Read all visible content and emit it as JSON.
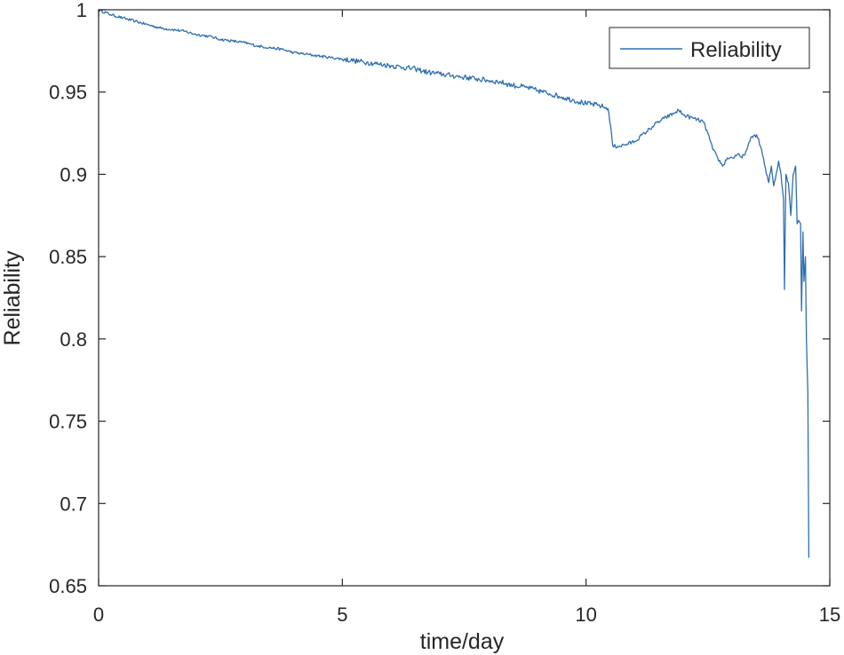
{
  "chart_data": {
    "type": "line",
    "xlabel": "time/day",
    "ylabel": "Reliability",
    "xlim": [
      0,
      15
    ],
    "ylim": [
      0.65,
      1
    ],
    "xticks": [
      "0",
      "5",
      "10",
      "15"
    ],
    "yticks": [
      "0.65",
      "0.7",
      "0.75",
      "0.8",
      "0.85",
      "0.9",
      "0.95",
      "1"
    ],
    "grid": false,
    "legend_position": "top-right",
    "series": [
      {
        "name": "Reliability",
        "color": "#2e6fb0",
        "x": [
          0,
          0.25,
          0.5,
          0.75,
          1,
          1.25,
          1.5,
          1.75,
          2,
          2.25,
          2.5,
          2.75,
          3,
          3.25,
          3.5,
          3.75,
          4,
          4.25,
          4.5,
          4.75,
          5,
          5.25,
          5.5,
          5.75,
          6,
          6.25,
          6.5,
          6.75,
          7,
          7.25,
          7.5,
          7.75,
          8,
          8.25,
          8.5,
          8.75,
          9,
          9.25,
          9.5,
          9.75,
          10,
          10.25,
          10.45,
          10.5,
          10.55,
          10.65,
          10.8,
          11,
          11.2,
          11.4,
          11.6,
          11.8,
          11.9,
          12,
          12.2,
          12.4,
          12.5,
          12.6,
          12.7,
          12.8,
          12.9,
          13,
          13.1,
          13.2,
          13.3,
          13.4,
          13.5,
          13.6,
          13.7,
          13.75,
          13.8,
          13.85,
          13.9,
          13.95,
          14,
          14.05,
          14.07,
          14.1,
          14.15,
          14.2,
          14.25,
          14.3,
          14.33,
          14.36,
          14.4,
          14.42,
          14.45,
          14.47,
          14.5,
          14.52,
          14.55,
          14.57
        ],
        "values": [
          1.0,
          0.997,
          0.995,
          0.993,
          0.991,
          0.989,
          0.988,
          0.987,
          0.985,
          0.984,
          0.982,
          0.981,
          0.98,
          0.978,
          0.977,
          0.976,
          0.974,
          0.973,
          0.972,
          0.971,
          0.97,
          0.969,
          0.968,
          0.967,
          0.966,
          0.965,
          0.964,
          0.962,
          0.961,
          0.96,
          0.959,
          0.958,
          0.957,
          0.956,
          0.954,
          0.953,
          0.951,
          0.949,
          0.947,
          0.945,
          0.943,
          0.942,
          0.94,
          0.93,
          0.917,
          0.917,
          0.918,
          0.92,
          0.925,
          0.93,
          0.934,
          0.937,
          0.939,
          0.936,
          0.934,
          0.932,
          0.925,
          0.915,
          0.91,
          0.905,
          0.91,
          0.91,
          0.912,
          0.91,
          0.915,
          0.923,
          0.924,
          0.915,
          0.9,
          0.895,
          0.905,
          0.893,
          0.9,
          0.908,
          0.9,
          0.885,
          0.83,
          0.9,
          0.895,
          0.875,
          0.9,
          0.905,
          0.87,
          0.872,
          0.87,
          0.817,
          0.865,
          0.835,
          0.85,
          0.8,
          0.768,
          0.667
        ]
      }
    ]
  }
}
